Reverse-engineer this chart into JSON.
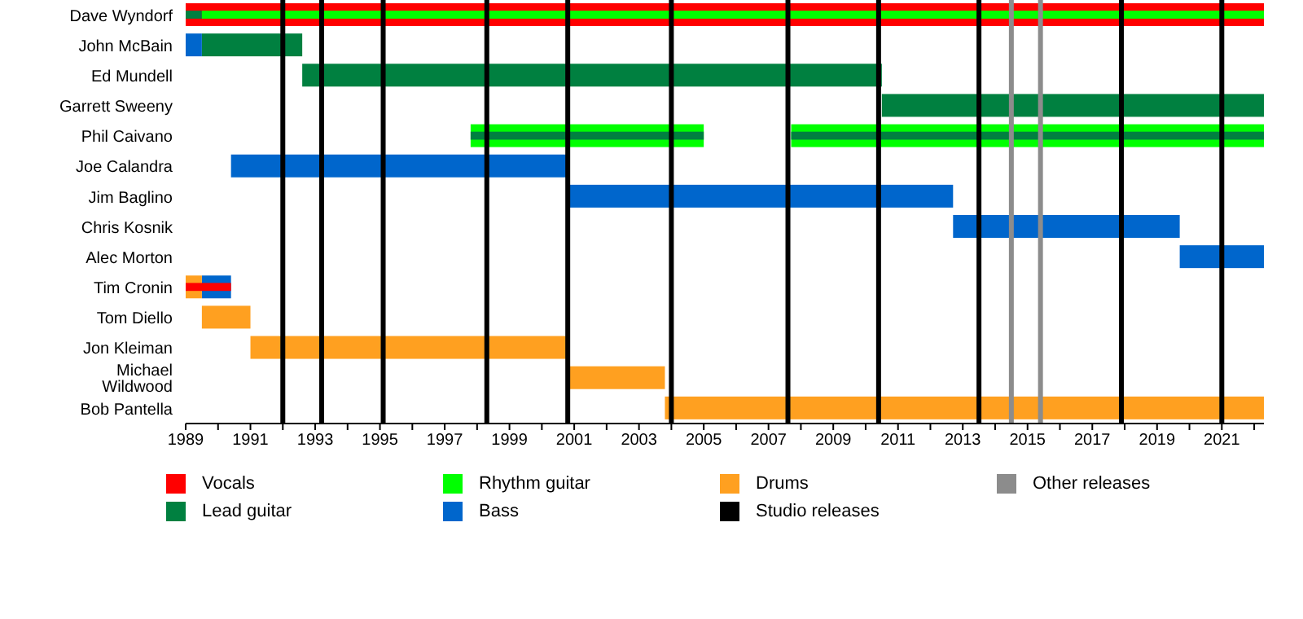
{
  "chart_data": {
    "type": "bar",
    "orientation": "horizontal",
    "legend": "bottom",
    "grid": false,
    "categories": [
      "Dave Wyndorf",
      "John McBain",
      "Ed Mundell",
      "Garrett Sweeny",
      "Phil Caivano",
      "Joe Calandra",
      "Jim Baglino",
      "Chris Kosnik",
      "Alec Morton",
      "Tim Cronin",
      "Tom Diello",
      "Jon Kleiman",
      "Michael Wildwood",
      "Bob Pantella"
    ],
    "xlim": [
      1989,
      2022.3
    ],
    "xticks": [
      1989,
      {
        "value": 1990,
        "label": null
      },
      1991,
      {
        "value": 1992,
        "label": null
      },
      1993,
      {
        "value": 1994,
        "label": null
      },
      1995,
      {
        "value": 1996,
        "label": null
      },
      1997,
      {
        "value": 1998,
        "label": null
      },
      1999,
      {
        "value": 2000,
        "label": null
      },
      2001,
      {
        "value": 2002,
        "label": null
      },
      2003,
      {
        "value": 2004,
        "label": null
      },
      2005,
      {
        "value": 2006,
        "label": null
      },
      2007,
      {
        "value": 2008,
        "label": null
      },
      2009,
      {
        "value": 2010,
        "label": null
      },
      2011,
      {
        "value": 2012,
        "label": null
      },
      2013,
      {
        "value": 2014,
        "label": null
      },
      2015,
      {
        "value": 2016,
        "label": null
      },
      2017,
      {
        "value": 2018,
        "label": null
      },
      2019,
      {
        "value": 2020,
        "label": null
      },
      2021,
      {
        "value": 2022,
        "label": null
      }
    ],
    "series": [
      {
        "name": "Vocals",
        "color": "#ff0000",
        "base": [
          1989,
          null,
          null,
          null,
          null,
          null,
          null,
          null,
          null,
          null,
          null,
          null,
          null,
          null
        ],
        "values": [
          33.3,
          null,
          null,
          null,
          null,
          null,
          null,
          null,
          null,
          null,
          null,
          null,
          null,
          null
        ]
      },
      {
        "name": "Lead guitar",
        "color": "#008040",
        "base": [
          null,
          1989.5,
          1992.6,
          2010.5,
          null,
          null,
          null,
          null,
          null,
          null,
          null,
          null,
          null,
          null
        ],
        "values": [
          null,
          3.1,
          17.9,
          11.8,
          null,
          null,
          null,
          null,
          null,
          null,
          null,
          null,
          null,
          null
        ]
      },
      {
        "name": "Rhythm guitar",
        "color": "#00ff00",
        "base": [
          null,
          null,
          null,
          null,
          1997.8,
          null,
          null,
          null,
          null,
          null,
          null,
          null,
          null,
          null
        ],
        "values": [
          null,
          null,
          null,
          null,
          7.2,
          null,
          null,
          null,
          null,
          null,
          null,
          null,
          null,
          null
        ]
      },
      {
        "color": "#00ff00",
        "base": [
          null,
          null,
          null,
          null,
          2007.7,
          null,
          null,
          null,
          null,
          null,
          null,
          null,
          null,
          null
        ],
        "values": [
          null,
          null,
          null,
          null,
          14.6,
          null,
          null,
          null,
          null,
          null,
          null,
          null,
          null,
          null
        ]
      },
      {
        "name": "Bass",
        "color": "#0066cc",
        "base": [
          null,
          1989,
          null,
          null,
          null,
          1990.4,
          2000.8,
          2012.7,
          2019.7,
          1989.5,
          null,
          null,
          null,
          null
        ],
        "values": [
          null,
          0.5,
          null,
          null,
          null,
          10.4,
          11.9,
          7,
          2.6,
          0.9,
          null,
          null,
          null,
          null
        ]
      },
      {
        "name": "Drums",
        "color": "#ffa020",
        "base": [
          null,
          null,
          null,
          null,
          null,
          null,
          null,
          null,
          null,
          1989,
          1989.5,
          1991,
          2000.8,
          2003.8
        ],
        "values": [
          null,
          null,
          null,
          null,
          null,
          null,
          null,
          null,
          null,
          0.5,
          1.5,
          9.8,
          3,
          18.5
        ]
      },
      {
        "color": "#008040",
        "base": [
          1989,
          null,
          null,
          null,
          1997.8,
          null,
          null,
          null,
          null,
          null,
          null,
          null,
          null,
          null
        ],
        "values": [
          0.5,
          null,
          null,
          null,
          7.2,
          null,
          null,
          null,
          null,
          null,
          null,
          null,
          null,
          null
        ]
      },
      {
        "color": "#008040",
        "base": [
          null,
          null,
          null,
          null,
          2007.7,
          null,
          null,
          null,
          null,
          null,
          null,
          null,
          null,
          null
        ],
        "values": [
          null,
          null,
          null,
          null,
          14.6,
          null,
          null,
          null,
          null,
          null,
          null,
          null,
          null,
          null
        ]
      },
      {
        "color": "#00ff00",
        "base": [
          1989.5,
          null,
          null,
          null,
          null,
          null,
          null,
          null,
          null,
          null,
          null,
          null,
          null,
          null
        ],
        "values": [
          32.8,
          null,
          null,
          null,
          null,
          null,
          null,
          null,
          null,
          null,
          null,
          null,
          null,
          null
        ]
      },
      {
        "color": "#ff0000",
        "base": [
          null,
          null,
          null,
          null,
          null,
          null,
          null,
          null,
          null,
          1989,
          null,
          null,
          null,
          null
        ],
        "values": [
          null,
          null,
          null,
          null,
          null,
          null,
          null,
          null,
          null,
          1.4,
          null,
          null,
          null,
          null
        ]
      }
    ],
    "ref_lines": [
      {
        "axis": "x",
        "value": 1992,
        "label": "Studio releases",
        "color": "#000000"
      },
      {
        "axis": "x",
        "value": 1993.2,
        "color": "#000000"
      },
      {
        "axis": "x",
        "value": 1995.1,
        "color": "#000000"
      },
      {
        "axis": "x",
        "value": 1998.3,
        "color": "#000000"
      },
      {
        "axis": "x",
        "value": 2000.8,
        "color": "#000000"
      },
      {
        "axis": "x",
        "value": 2004,
        "color": "#000000"
      },
      {
        "axis": "x",
        "value": 2007.6,
        "color": "#000000"
      },
      {
        "axis": "x",
        "value": 2010.4,
        "color": "#000000"
      },
      {
        "axis": "x",
        "value": 2013.5,
        "color": "#000000"
      },
      {
        "axis": "x",
        "value": 2017.9,
        "color": "#000000"
      },
      {
        "axis": "x",
        "value": 2021,
        "color": "#000000"
      },
      {
        "axis": "x",
        "value": 2014.5,
        "label": "Other releases",
        "color": "#8c8c8c"
      },
      {
        "axis": "x",
        "value": 2015.4,
        "color": "#8c8c8c"
      }
    ]
  }
}
